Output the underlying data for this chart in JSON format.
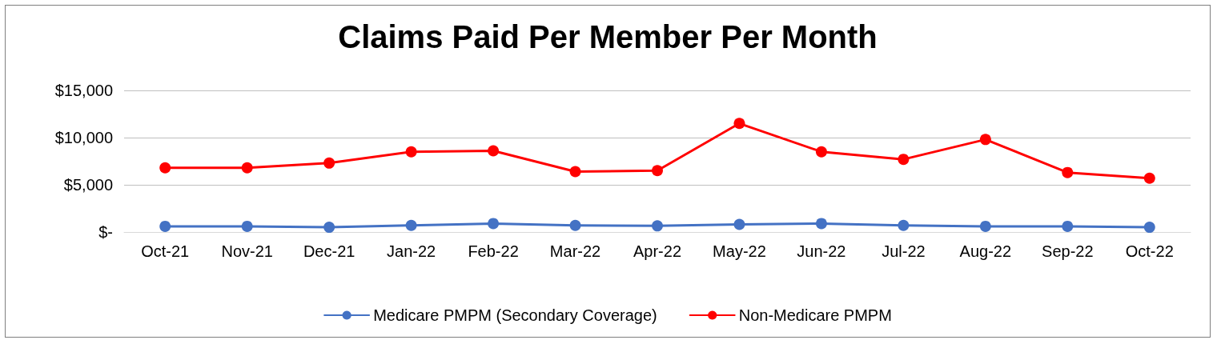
{
  "chart_data": {
    "type": "line",
    "title": "Claims Paid Per Member Per Month",
    "categories": [
      "Oct-21",
      "Nov-21",
      "Dec-21",
      "Jan-22",
      "Feb-22",
      "Mar-22",
      "Apr-22",
      "May-22",
      "Jun-22",
      "Jul-22",
      "Aug-22",
      "Sep-22",
      "Oct-22"
    ],
    "series": [
      {
        "name": "Medicare PMPM (Secondary Coverage)",
        "color": "#4472c4",
        "values": [
          600,
          600,
          500,
          700,
          900,
          700,
          650,
          800,
          900,
          700,
          600,
          600,
          500
        ]
      },
      {
        "name": "Non-Medicare PMPM",
        "color": "#ff0000",
        "values": [
          6800,
          6800,
          7300,
          8500,
          8600,
          6400,
          6500,
          11500,
          8500,
          7700,
          9800,
          6300,
          5700
        ]
      }
    ],
    "ylim": [
      0,
      15000
    ],
    "yticks": [
      {
        "value": 0,
        "label": "$-"
      },
      {
        "value": 5000,
        "label": "$5,000"
      },
      {
        "value": 10000,
        "label": "$10,000"
      },
      {
        "value": 15000,
        "label": "$15,000"
      }
    ],
    "grid": "y",
    "legend": "bottom",
    "marker": "circle",
    "line_style": "solid"
  }
}
